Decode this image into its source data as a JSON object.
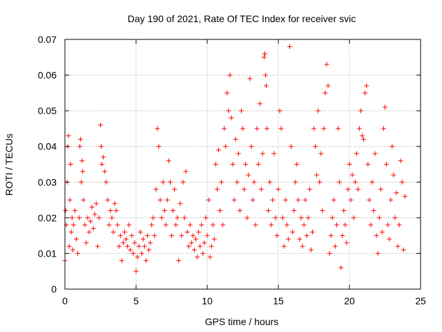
{
  "chart_data": {
    "type": "scatter",
    "title": "Day 190 of 2021, Rate Of TEC Index for receiver svic",
    "xlabel": "GPS time / hours",
    "ylabel": "ROTI / TECUs",
    "xlim": [
      0,
      25
    ],
    "ylim": [
      0,
      0.07
    ],
    "x_ticks": [
      0,
      5,
      10,
      15,
      20,
      25
    ],
    "x_tick_labels": [
      "0",
      "5",
      "10",
      "15",
      "20",
      "25"
    ],
    "y_ticks": [
      0,
      0.01,
      0.02,
      0.03,
      0.04,
      0.05,
      0.06,
      0.07
    ],
    "y_tick_labels": [
      "0",
      "0.01",
      "0.02",
      "0.03",
      "0.04",
      "0.05",
      "0.06",
      "0.07"
    ],
    "grid": true,
    "marker": "plus",
    "color": "#ff0000",
    "series": [
      {
        "points": [
          [
            0.0,
            0.008
          ],
          [
            0.05,
            0.022
          ],
          [
            0.1,
            0.018
          ],
          [
            0.15,
            0.03
          ],
          [
            0.2,
            0.04
          ],
          [
            0.25,
            0.043
          ],
          [
            0.3,
            0.012
          ],
          [
            0.35,
            0.025
          ],
          [
            0.4,
            0.035
          ],
          [
            0.45,
            0.016
          ],
          [
            0.5,
            0.02
          ],
          [
            0.55,
            0.011
          ],
          [
            0.6,
            0.018
          ],
          [
            0.7,
            0.022
          ],
          [
            0.8,
            0.014
          ],
          [
            0.9,
            0.01
          ],
          [
            1.0,
            0.02
          ],
          [
            1.05,
            0.04
          ],
          [
            1.1,
            0.042
          ],
          [
            1.15,
            0.03
          ],
          [
            1.2,
            0.036
          ],
          [
            1.25,
            0.033
          ],
          [
            1.3,
            0.025
          ],
          [
            1.4,
            0.018
          ],
          [
            1.5,
            0.013
          ],
          [
            1.6,
            0.02
          ],
          [
            1.7,
            0.016
          ],
          [
            1.8,
            0.019
          ],
          [
            1.9,
            0.023
          ],
          [
            2.0,
            0.017
          ],
          [
            2.1,
            0.021
          ],
          [
            2.2,
            0.024
          ],
          [
            2.3,
            0.012
          ],
          [
            2.4,
            0.02
          ],
          [
            2.5,
            0.046
          ],
          [
            2.55,
            0.04
          ],
          [
            2.6,
            0.035
          ],
          [
            2.7,
            0.037
          ],
          [
            2.8,
            0.033
          ],
          [
            2.9,
            0.03
          ],
          [
            3.0,
            0.025
          ],
          [
            3.1,
            0.018
          ],
          [
            3.2,
            0.022
          ],
          [
            3.3,
            0.02
          ],
          [
            3.4,
            0.016
          ],
          [
            3.5,
            0.024
          ],
          [
            3.6,
            0.022
          ],
          [
            3.7,
            0.018
          ],
          [
            3.8,
            0.012
          ],
          [
            3.9,
            0.015
          ],
          [
            4.0,
            0.008
          ],
          [
            4.1,
            0.013
          ],
          [
            4.2,
            0.016
          ],
          [
            4.3,
            0.014
          ],
          [
            4.4,
            0.012
          ],
          [
            4.5,
            0.018
          ],
          [
            4.6,
            0.011
          ],
          [
            4.7,
            0.015
          ],
          [
            4.8,
            0.01
          ],
          [
            4.9,
            0.013
          ],
          [
            5.0,
            0.005
          ],
          [
            5.1,
            0.009
          ],
          [
            5.2,
            0.012
          ],
          [
            5.3,
            0.016
          ],
          [
            5.4,
            0.01
          ],
          [
            5.5,
            0.014
          ],
          [
            5.6,
            0.012
          ],
          [
            5.7,
            0.008
          ],
          [
            5.8,
            0.015
          ],
          [
            5.9,
            0.011
          ],
          [
            6.0,
            0.013
          ],
          [
            6.1,
            0.018
          ],
          [
            6.2,
            0.02
          ],
          [
            6.3,
            0.015
          ],
          [
            6.4,
            0.028
          ],
          [
            6.5,
            0.045
          ],
          [
            6.6,
            0.04
          ],
          [
            6.7,
            0.025
          ],
          [
            6.8,
            0.02
          ],
          [
            6.9,
            0.03
          ],
          [
            7.0,
            0.022
          ],
          [
            7.1,
            0.018
          ],
          [
            7.2,
            0.025
          ],
          [
            7.3,
            0.036
          ],
          [
            7.4,
            0.03
          ],
          [
            7.5,
            0.015
          ],
          [
            7.6,
            0.022
          ],
          [
            7.7,
            0.028
          ],
          [
            7.8,
            0.018
          ],
          [
            7.9,
            0.02
          ],
          [
            8.0,
            0.008
          ],
          [
            8.1,
            0.024
          ],
          [
            8.2,
            0.015
          ],
          [
            8.3,
            0.03
          ],
          [
            8.4,
            0.02
          ],
          [
            8.5,
            0.033
          ],
          [
            8.6,
            0.016
          ],
          [
            8.7,
            0.012
          ],
          [
            8.8,
            0.018
          ],
          [
            8.9,
            0.013
          ],
          [
            9.0,
            0.015
          ],
          [
            9.1,
            0.011
          ],
          [
            9.2,
            0.014
          ],
          [
            9.3,
            0.009
          ],
          [
            9.4,
            0.016
          ],
          [
            9.5,
            0.012
          ],
          [
            9.6,
            0.018
          ],
          [
            9.7,
            0.01
          ],
          [
            9.8,
            0.013
          ],
          [
            9.9,
            0.02
          ],
          [
            10.0,
            0.015
          ],
          [
            10.1,
            0.025
          ],
          [
            10.2,
            0.009
          ],
          [
            10.3,
            0.012
          ],
          [
            10.4,
            0.018
          ],
          [
            10.5,
            0.014
          ],
          [
            10.6,
            0.035
          ],
          [
            10.7,
            0.028
          ],
          [
            10.8,
            0.039
          ],
          [
            10.9,
            0.022
          ],
          [
            11.0,
            0.03
          ],
          [
            11.1,
            0.018
          ],
          [
            11.2,
            0.045
          ],
          [
            11.3,
            0.04
          ],
          [
            11.4,
            0.055
          ],
          [
            11.5,
            0.05
          ],
          [
            11.6,
            0.06
          ],
          [
            11.7,
            0.048
          ],
          [
            11.8,
            0.035
          ],
          [
            11.9,
            0.025
          ],
          [
            12.0,
            0.042
          ],
          [
            12.1,
            0.03
          ],
          [
            12.2,
            0.038
          ],
          [
            12.3,
            0.022
          ],
          [
            12.4,
            0.05
          ],
          [
            12.5,
            0.045
          ],
          [
            12.6,
            0.028
          ],
          [
            12.7,
            0.035
          ],
          [
            12.8,
            0.02
          ],
          [
            12.9,
            0.032
          ],
          [
            13.0,
            0.059
          ],
          [
            13.1,
            0.04
          ],
          [
            13.2,
            0.025
          ],
          [
            13.3,
            0.03
          ],
          [
            13.4,
            0.018
          ],
          [
            13.5,
            0.045
          ],
          [
            13.6,
            0.035
          ],
          [
            13.7,
            0.052
          ],
          [
            13.8,
            0.028
          ],
          [
            13.9,
            0.038
          ],
          [
            14.0,
            0.065
          ],
          [
            14.05,
            0.066
          ],
          [
            14.1,
            0.06
          ],
          [
            14.15,
            0.057
          ],
          [
            14.2,
            0.045
          ],
          [
            14.3,
            0.022
          ],
          [
            14.4,
            0.03
          ],
          [
            14.5,
            0.018
          ],
          [
            14.6,
            0.025
          ],
          [
            14.7,
            0.038
          ],
          [
            14.8,
            0.02
          ],
          [
            14.9,
            0.015
          ],
          [
            15.0,
            0.028
          ],
          [
            15.1,
            0.05
          ],
          [
            15.2,
            0.045
          ],
          [
            15.3,
            0.02
          ],
          [
            15.4,
            0.012
          ],
          [
            15.5,
            0.025
          ],
          [
            15.6,
            0.018
          ],
          [
            15.7,
            0.014
          ],
          [
            15.8,
            0.068
          ],
          [
            15.9,
            0.04
          ],
          [
            16.0,
            0.016
          ],
          [
            16.1,
            0.022
          ],
          [
            16.2,
            0.03
          ],
          [
            16.3,
            0.035
          ],
          [
            16.4,
            0.025
          ],
          [
            16.5,
            0.014
          ],
          [
            16.6,
            0.02
          ],
          [
            16.7,
            0.012
          ],
          [
            16.8,
            0.018
          ],
          [
            16.9,
            0.025
          ],
          [
            17.0,
            0.015
          ],
          [
            17.1,
            0.02
          ],
          [
            17.2,
            0.028
          ],
          [
            17.3,
            0.011
          ],
          [
            17.4,
            0.016
          ],
          [
            17.5,
            0.045
          ],
          [
            17.6,
            0.04
          ],
          [
            17.7,
            0.032
          ],
          [
            17.8,
            0.05
          ],
          [
            17.9,
            0.03
          ],
          [
            18.0,
            0.038
          ],
          [
            18.1,
            0.022
          ],
          [
            18.2,
            0.045
          ],
          [
            18.3,
            0.055
          ],
          [
            18.4,
            0.063
          ],
          [
            18.5,
            0.057
          ],
          [
            18.6,
            0.01
          ],
          [
            18.7,
            0.015
          ],
          [
            18.8,
            0.02
          ],
          [
            18.9,
            0.025
          ],
          [
            19.0,
            0.012
          ],
          [
            19.1,
            0.018
          ],
          [
            19.2,
            0.045
          ],
          [
            19.3,
            0.03
          ],
          [
            19.4,
            0.006
          ],
          [
            19.5,
            0.015
          ],
          [
            19.6,
            0.022
          ],
          [
            19.7,
            0.018
          ],
          [
            19.8,
            0.013
          ],
          [
            19.9,
            0.028
          ],
          [
            20.0,
            0.035
          ],
          [
            20.1,
            0.025
          ],
          [
            20.2,
            0.032
          ],
          [
            20.3,
            0.02
          ],
          [
            20.4,
            0.03
          ],
          [
            20.5,
            0.038
          ],
          [
            20.6,
            0.028
          ],
          [
            20.7,
            0.045
          ],
          [
            20.8,
            0.05
          ],
          [
            20.9,
            0.043
          ],
          [
            21.0,
            0.042
          ],
          [
            21.1,
            0.055
          ],
          [
            21.2,
            0.057
          ],
          [
            21.3,
            0.035
          ],
          [
            21.4,
            0.025
          ],
          [
            21.5,
            0.018
          ],
          [
            21.6,
            0.03
          ],
          [
            21.7,
            0.022
          ],
          [
            21.8,
            0.038
          ],
          [
            21.9,
            0.015
          ],
          [
            22.0,
            0.01
          ],
          [
            22.1,
            0.02
          ],
          [
            22.2,
            0.028
          ],
          [
            22.3,
            0.016
          ],
          [
            22.4,
            0.045
          ],
          [
            22.5,
            0.051
          ],
          [
            22.6,
            0.035
          ],
          [
            22.7,
            0.018
          ],
          [
            22.8,
            0.014
          ],
          [
            22.9,
            0.025
          ],
          [
            23.0,
            0.04
          ],
          [
            23.1,
            0.032
          ],
          [
            23.2,
            0.02
          ],
          [
            23.3,
            0.027
          ],
          [
            23.4,
            0.012
          ],
          [
            23.5,
            0.018
          ],
          [
            23.6,
            0.036
          ],
          [
            23.7,
            0.03
          ],
          [
            23.8,
            0.011
          ],
          [
            23.9,
            0.026
          ]
        ]
      }
    ]
  }
}
